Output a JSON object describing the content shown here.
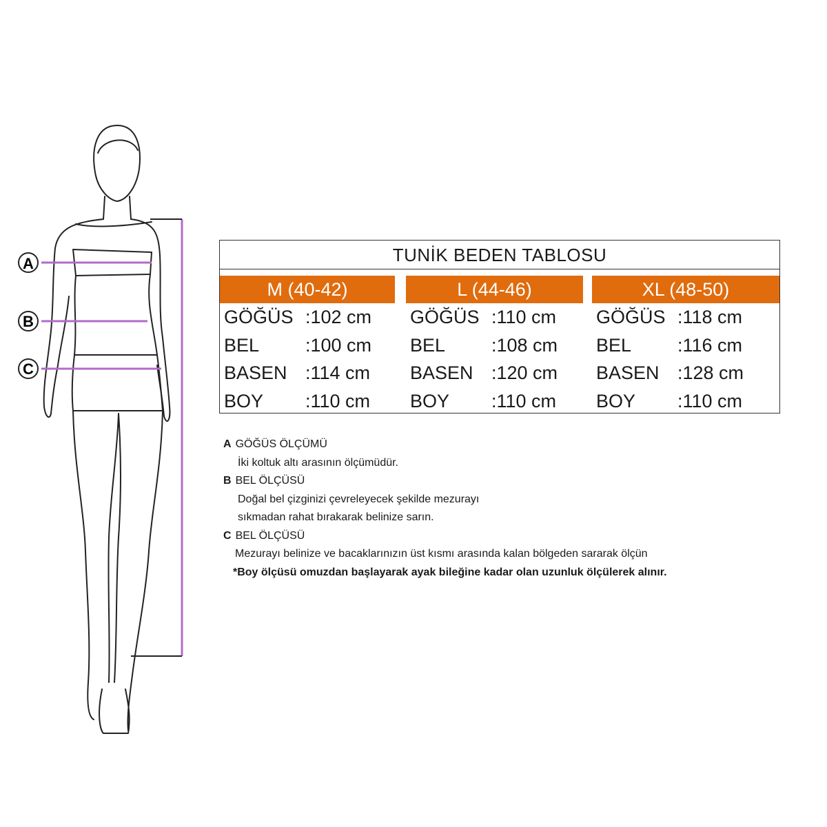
{
  "table": {
    "title": "TUNİK BEDEN TABLOSU",
    "header_color": "#e06c0e",
    "sizes": [
      {
        "label": "M (40-42)",
        "rows": [
          {
            "name": "GÖĞÜS",
            "value": ":102 cm"
          },
          {
            "name": "BEL",
            "value": ":100 cm"
          },
          {
            "name": "BASEN",
            "value": ":114 cm"
          },
          {
            "name": "BOY",
            "value": ":110 cm"
          }
        ]
      },
      {
        "label": "L (44-46)",
        "rows": [
          {
            "name": "GÖĞÜS",
            "value": ":110 cm"
          },
          {
            "name": "BEL",
            "value": ":108 cm"
          },
          {
            "name": "BASEN",
            "value": ":120 cm"
          },
          {
            "name": "BOY",
            "value": ":110 cm"
          }
        ]
      },
      {
        "label": "XL (48-50)",
        "rows": [
          {
            "name": "GÖĞÜS",
            "value": ":118 cm"
          },
          {
            "name": "BEL",
            "value": ":116 cm"
          },
          {
            "name": "BASEN",
            "value": ":128 cm"
          },
          {
            "name": "BOY",
            "value": ":110 cm"
          }
        ]
      }
    ]
  },
  "figure": {
    "markers": [
      "A",
      "B",
      "C"
    ],
    "line_color": "#b36bc7"
  },
  "notes": [
    {
      "letter": "A",
      "title": "GÖĞÜS ÖLÇÜMÜ",
      "lines": [
        "İki koltuk altı arasının ölçümüdür."
      ]
    },
    {
      "letter": "B",
      "title": "BEL ÖLÇÜSÜ",
      "lines": [
        "Doğal bel çizginizi çevreleyecek şekilde mezurayı",
        "sıkmadan rahat bırakarak belinize sarın."
      ]
    },
    {
      "letter": "C",
      "title": "BEL ÖLÇÜSÜ",
      "lines": [
        "Mezurayı belinize ve bacaklarınızın üst kısmı arasında kalan bölgeden sararak ölçün"
      ]
    }
  ],
  "footnote": "*Boy ölçüsü omuzdan başlayarak ayak bileğine kadar olan uzunluk ölçülerek alınır."
}
